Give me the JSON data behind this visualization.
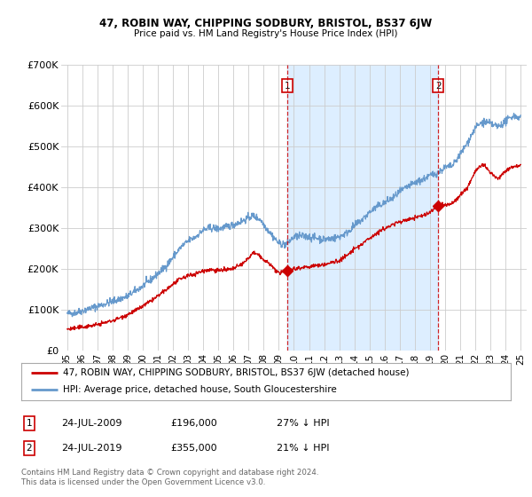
{
  "title": "47, ROBIN WAY, CHIPPING SODBURY, BRISTOL, BS37 6JW",
  "subtitle": "Price paid vs. HM Land Registry's House Price Index (HPI)",
  "red_label": "47, ROBIN WAY, CHIPPING SODBURY, BRISTOL, BS37 6JW (detached house)",
  "blue_label": "HPI: Average price, detached house, South Gloucestershire",
  "footnote": "Contains HM Land Registry data © Crown copyright and database right 2024.\nThis data is licensed under the Open Government Licence v3.0.",
  "transactions": [
    {
      "num": 1,
      "date": "24-JUL-2009",
      "price": "£196,000",
      "hpi": "27% ↓ HPI"
    },
    {
      "num": 2,
      "date": "24-JUL-2019",
      "price": "£355,000",
      "hpi": "21% ↓ HPI"
    }
  ],
  "sale1_year": 2009.55,
  "sale1_price": 196000,
  "sale2_year": 2019.55,
  "sale2_price": 355000,
  "ylim": [
    0,
    700000
  ],
  "yticks": [
    0,
    100000,
    200000,
    300000,
    400000,
    500000,
    600000,
    700000
  ],
  "ytick_labels": [
    "£0",
    "£100K",
    "£200K",
    "£300K",
    "£400K",
    "£500K",
    "£600K",
    "£700K"
  ],
  "xlim_start": 1994.6,
  "xlim_end": 2025.4,
  "red_color": "#cc0000",
  "blue_color": "#6699cc",
  "shade_color": "#ddeeff",
  "dashed_color": "#cc0000",
  "bg_color": "#ffffff",
  "grid_color": "#cccccc"
}
